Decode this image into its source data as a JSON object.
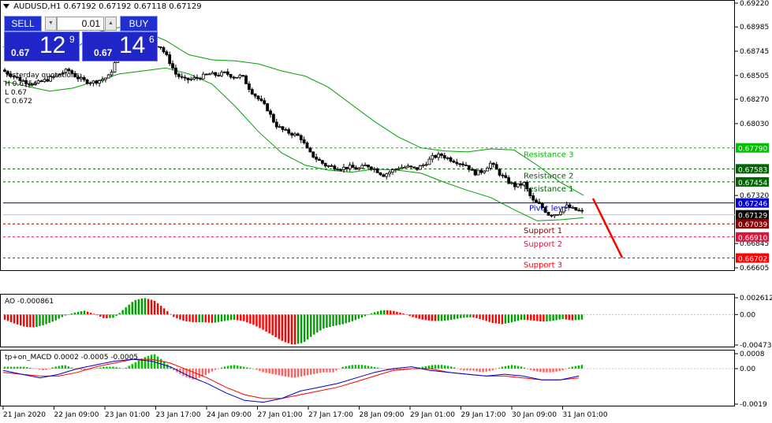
{
  "header": {
    "symbol_icon": "triangle-down-icon",
    "title": "AUDUSD,H1  0.67192 0.67192 0.67118 0.67129"
  },
  "trade_panel": {
    "sell_label": "SELL",
    "buy_label": "BUY",
    "lot_value": "0.01",
    "sell_price_prefix": "0.67",
    "sell_price_big": "12",
    "sell_price_sup": "9",
    "buy_price_prefix": "0.67",
    "buy_price_big": "14",
    "buy_price_sup": "6"
  },
  "yesterday": {
    "title": "Yesterday quotations:",
    "h": "H 0.6754",
    "l": "L 0.67",
    "c": "C 0.672"
  },
  "chart_data": [
    {
      "type": "candlestick",
      "panel": "main",
      "symbol": "AUDUSD",
      "timeframe": "H1",
      "ylim": [
        0.66605,
        0.6922
      ],
      "y_ticks": [
        "0.69220",
        "0.68985",
        "0.68745",
        "0.68505",
        "0.68270",
        "0.68030",
        "0.67320",
        "0.66845",
        "0.66605"
      ],
      "x_ticks": [
        "21 Jan 2020",
        "22 Jan 09:00",
        "23 Jan 01:00",
        "23 Jan 17:00",
        "24 Jan 09:00",
        "27 Jan 01:00",
        "27 Jan 17:00",
        "28 Jan 09:00",
        "29 Jan 01:00",
        "29 Jan 17:00",
        "30 Jan 09:00",
        "31 Jan 01:00"
      ],
      "close_path": [
        0.6856,
        0.6852,
        0.6847,
        0.6844,
        0.6842,
        0.6845,
        0.6848,
        0.6852,
        0.6856,
        0.6849,
        0.6845,
        0.6844,
        0.6846,
        0.685,
        0.687,
        0.6884,
        0.6888,
        0.688,
        0.6879,
        0.6881,
        0.6868,
        0.6852,
        0.6846,
        0.6847,
        0.6849,
        0.6852,
        0.6851,
        0.6853,
        0.6849,
        0.685,
        0.6836,
        0.6827,
        0.6818,
        0.6802,
        0.6796,
        0.6793,
        0.679,
        0.6775,
        0.6768,
        0.6762,
        0.676,
        0.6759,
        0.676,
        0.6758,
        0.6762,
        0.6758,
        0.6752,
        0.6756,
        0.676,
        0.676,
        0.6758,
        0.6763,
        0.677,
        0.6772,
        0.6768,
        0.6765,
        0.6762,
        0.6754,
        0.6756,
        0.6764,
        0.6754,
        0.6746,
        0.6741,
        0.6744,
        0.6727,
        0.6722,
        0.6713,
        0.6714,
        0.6722,
        0.6718,
        0.6716
      ],
      "bands": {
        "upper": [
          0.6879,
          0.6873,
          0.6868,
          0.6875,
          0.6893,
          0.6898,
          0.6895,
          0.6885,
          0.6871,
          0.6866,
          0.6865,
          0.6862,
          0.6855,
          0.685,
          0.6839,
          0.6822,
          0.6805,
          0.679,
          0.6779,
          0.6776,
          0.6775,
          0.6778,
          0.6777,
          0.6762,
          0.6745,
          0.6732
        ],
        "lower": [
          0.6845,
          0.684,
          0.6835,
          0.6838,
          0.6845,
          0.6852,
          0.6855,
          0.6858,
          0.6852,
          0.6842,
          0.682,
          0.6795,
          0.6774,
          0.6762,
          0.6757,
          0.6755,
          0.6758,
          0.6757,
          0.6754,
          0.6745,
          0.6737,
          0.673,
          0.6718,
          0.6707,
          0.6708,
          0.671
        ]
      },
      "levels": [
        {
          "name": "Resistance 3",
          "value": "0.67790",
          "color": "#00c000",
          "badge": "#00c000"
        },
        {
          "name": "Resistance 2",
          "value": "0.67583",
          "color": "#006400",
          "badge": "#006400"
        },
        {
          "name": "Resistance 1",
          "value": "0.67454",
          "color": "#006400",
          "badge": "#006400"
        },
        {
          "name": "Pivot level",
          "value": "0.67246",
          "color": "#0000cc",
          "badge": "#0000cc"
        },
        {
          "name": "",
          "value": "0.67129",
          "color": "#c0c0c0",
          "badge": "#000000"
        },
        {
          "name": "Support 1",
          "value": "0.67039",
          "color": "#8b0000",
          "badge": "#8b0000"
        },
        {
          "name": "Support 2",
          "value": "0.66910",
          "color": "#dc143c",
          "badge": "#dc143c"
        },
        {
          "name": "Support 3",
          "value": "0.66702",
          "color": "#ff0000",
          "badge": "#ff0000"
        }
      ]
    },
    {
      "type": "bar",
      "panel": "ao",
      "label": "AO -0.000861",
      "y_ticks": [
        "0.002612",
        "0.00",
        "-0.004738"
      ],
      "ylim": [
        -0.004738,
        0.002612
      ],
      "values": [
        -0.0008,
        -0.0014,
        -0.0019,
        -0.002,
        -0.0016,
        -0.001,
        -0.0002,
        0.0003,
        0.0006,
        0.0001,
        -0.0006,
        -0.0005,
        0.0009,
        0.0022,
        0.0026,
        0.0022,
        0.001,
        -0.0004,
        -0.001,
        -0.0012,
        -0.0012,
        -0.0013,
        -0.001,
        -0.0008,
        -0.001,
        -0.0016,
        -0.0024,
        -0.0033,
        -0.0042,
        -0.0047,
        -0.0044,
        -0.0032,
        -0.0022,
        -0.0018,
        -0.0015,
        -0.001,
        -0.0004,
        0.0003,
        0.0007,
        0.0006,
        0.0002,
        -0.0004,
        -0.0008,
        -0.001,
        -0.001,
        -0.0008,
        -0.0005,
        -0.0004,
        -0.0008,
        -0.0013,
        -0.0015,
        -0.0012,
        -0.0008,
        -0.0009,
        -0.0011,
        -0.001,
        -0.0007,
        -0.0009,
        -0.0008
      ]
    },
    {
      "type": "bar",
      "panel": "macd",
      "label": "tp+on_MACD 0.0002 -0.0005 -0.0005",
      "y_ticks": [
        "0.0008",
        "0.00",
        "-0.0019"
      ],
      "ylim": [
        -0.0019,
        0.0008
      ],
      "hist": [
        0.0001,
        0.0001,
        0.0001,
        0.0,
        -0.0001,
        0.0001,
        0.0002,
        0.0,
        -0.0001,
        0.0,
        0.0001,
        0.0001,
        0.0,
        0.0003,
        0.0006,
        0.0008,
        0.0004,
        -0.0001,
        -0.0004,
        -0.0006,
        -0.0004,
        -0.0001,
        0.0001,
        0.0002,
        0.0001,
        0.0,
        -0.0002,
        -0.0003,
        -0.0004,
        -0.0005,
        -0.0004,
        -0.0003,
        -0.0002,
        -0.0002,
        0.0001,
        0.0002,
        0.0002,
        0.0001,
        0.0,
        -0.0001,
        -0.0001,
        0.0,
        0.0001,
        0.0002,
        0.0002,
        0.0001,
        -0.0001,
        -0.0001,
        -0.0002,
        -0.0001,
        0.0001,
        0.0002,
        0.0001,
        -0.0001,
        -0.0002,
        -0.0002,
        -0.0001,
        0.0001,
        0.0002
      ],
      "macd": [
        -0.0001,
        -0.0003,
        -0.0005,
        -0.0003,
        0.0,
        0.0002,
        0.0004,
        0.0005,
        0.0004,
        0.0001,
        -0.0004,
        -0.0008,
        -0.0013,
        -0.0017,
        -0.0018,
        -0.0016,
        -0.0012,
        -0.001,
        -0.0008,
        -0.0005,
        -0.0002,
        0.0,
        0.0001,
        -0.0001,
        -0.0002,
        -0.0003,
        -0.0004,
        -0.0003,
        -0.0004,
        -0.0006,
        -0.0006,
        -0.0004
      ],
      "signal": [
        -0.0002,
        -0.0003,
        -0.0004,
        -0.0004,
        -0.0002,
        0.0001,
        0.0003,
        0.0005,
        0.0005,
        0.0003,
        -0.0001,
        -0.0005,
        -0.001,
        -0.0014,
        -0.0016,
        -0.0016,
        -0.0014,
        -0.0012,
        -0.001,
        -0.0007,
        -0.0004,
        -0.0001,
        0.0,
        0.0,
        -0.0002,
        -0.0003,
        -0.0004,
        -0.0004,
        -0.0005,
        -0.0006,
        -0.0006,
        -0.0005
      ]
    }
  ],
  "colors": {
    "ao_up": "#00a000",
    "ao_down": "#ff0000",
    "macd_pos": "#00c000",
    "macd_neg": "#ff6060",
    "macd_line": "#0000cc",
    "signal_line": "#ff0000",
    "bands": "#00a000",
    "candle": "#000000",
    "projection": "#ff0000"
  }
}
